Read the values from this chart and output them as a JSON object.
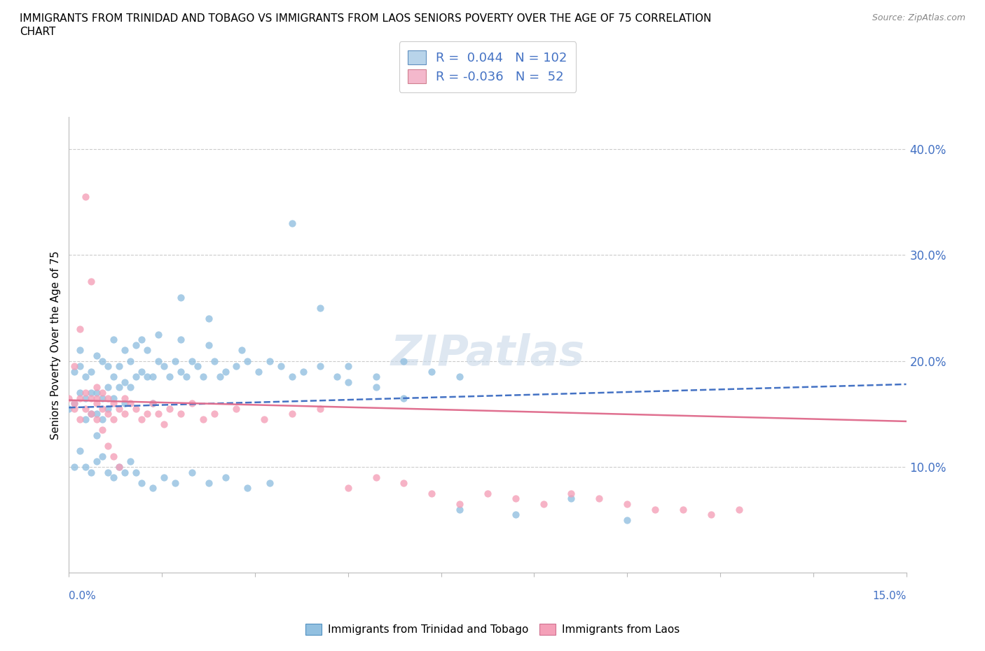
{
  "title": "IMMIGRANTS FROM TRINIDAD AND TOBAGO VS IMMIGRANTS FROM LAOS SENIORS POVERTY OVER THE AGE OF 75 CORRELATION\nCHART",
  "source": "Source: ZipAtlas.com",
  "ylabel": "Seniors Poverty Over the Age of 75",
  "ytick_vals": [
    0.1,
    0.2,
    0.3,
    0.4
  ],
  "ytick_labels": [
    "10.0%",
    "20.0%",
    "30.0%",
    "40.0%"
  ],
  "xmin": 0.0,
  "xmax": 0.15,
  "ymin": 0.0,
  "ymax": 0.43,
  "trinidad_color": "#92c0e0",
  "laos_color": "#f4a0b8",
  "trinidad_line_color": "#4472c4",
  "laos_line_color": "#e07090",
  "watermark": "ZIPatlas",
  "legend_label1": "R =  0.044   N = 102",
  "legend_label2": "R = -0.036   N =  52",
  "legend_patch_color1": "#b8d4ea",
  "legend_patch_color2": "#f4b8cc",
  "bottom_label1": "Immigrants from Trinidad and Tobago",
  "bottom_label2": "Immigrants from Laos",
  "trinidad_x": [
    0.0,
    0.001,
    0.001,
    0.002,
    0.002,
    0.002,
    0.003,
    0.003,
    0.003,
    0.004,
    0.004,
    0.004,
    0.005,
    0.005,
    0.005,
    0.005,
    0.006,
    0.006,
    0.006,
    0.007,
    0.007,
    0.007,
    0.008,
    0.008,
    0.008,
    0.009,
    0.009,
    0.01,
    0.01,
    0.01,
    0.011,
    0.011,
    0.012,
    0.012,
    0.013,
    0.013,
    0.014,
    0.014,
    0.015,
    0.015,
    0.016,
    0.016,
    0.017,
    0.018,
    0.019,
    0.02,
    0.02,
    0.021,
    0.022,
    0.023,
    0.024,
    0.025,
    0.026,
    0.027,
    0.028,
    0.03,
    0.031,
    0.032,
    0.034,
    0.036,
    0.038,
    0.04,
    0.042,
    0.045,
    0.048,
    0.05,
    0.055,
    0.06,
    0.065,
    0.07,
    0.001,
    0.002,
    0.003,
    0.004,
    0.005,
    0.006,
    0.007,
    0.008,
    0.009,
    0.01,
    0.011,
    0.012,
    0.013,
    0.015,
    0.017,
    0.019,
    0.022,
    0.025,
    0.028,
    0.032,
    0.036,
    0.04,
    0.045,
    0.05,
    0.055,
    0.06,
    0.07,
    0.08,
    0.09,
    0.1,
    0.02,
    0.025
  ],
  "trinidad_y": [
    0.155,
    0.19,
    0.16,
    0.17,
    0.195,
    0.21,
    0.145,
    0.165,
    0.185,
    0.15,
    0.17,
    0.19,
    0.13,
    0.15,
    0.17,
    0.205,
    0.145,
    0.165,
    0.2,
    0.155,
    0.175,
    0.195,
    0.165,
    0.185,
    0.22,
    0.175,
    0.195,
    0.16,
    0.18,
    0.21,
    0.175,
    0.2,
    0.185,
    0.215,
    0.19,
    0.22,
    0.185,
    0.21,
    0.16,
    0.185,
    0.2,
    0.225,
    0.195,
    0.185,
    0.2,
    0.19,
    0.22,
    0.185,
    0.2,
    0.195,
    0.185,
    0.215,
    0.2,
    0.185,
    0.19,
    0.195,
    0.21,
    0.2,
    0.19,
    0.2,
    0.195,
    0.185,
    0.19,
    0.195,
    0.185,
    0.18,
    0.185,
    0.2,
    0.19,
    0.185,
    0.1,
    0.115,
    0.1,
    0.095,
    0.105,
    0.11,
    0.095,
    0.09,
    0.1,
    0.095,
    0.105,
    0.095,
    0.085,
    0.08,
    0.09,
    0.085,
    0.095,
    0.085,
    0.09,
    0.08,
    0.085,
    0.33,
    0.25,
    0.195,
    0.175,
    0.165,
    0.06,
    0.055,
    0.07,
    0.05,
    0.26,
    0.24
  ],
  "laos_x": [
    0.0,
    0.001,
    0.001,
    0.002,
    0.002,
    0.003,
    0.003,
    0.004,
    0.004,
    0.005,
    0.005,
    0.005,
    0.006,
    0.006,
    0.007,
    0.007,
    0.008,
    0.008,
    0.009,
    0.01,
    0.01,
    0.011,
    0.012,
    0.013,
    0.014,
    0.015,
    0.016,
    0.017,
    0.018,
    0.02,
    0.022,
    0.024,
    0.026,
    0.03,
    0.035,
    0.04,
    0.045,
    0.05,
    0.055,
    0.06,
    0.065,
    0.07,
    0.075,
    0.08,
    0.085,
    0.09,
    0.095,
    0.1,
    0.105,
    0.11,
    0.115,
    0.12
  ],
  "laos_y": [
    0.165,
    0.16,
    0.155,
    0.145,
    0.165,
    0.155,
    0.17,
    0.15,
    0.165,
    0.145,
    0.16,
    0.175,
    0.155,
    0.17,
    0.15,
    0.165,
    0.145,
    0.16,
    0.155,
    0.15,
    0.165,
    0.16,
    0.155,
    0.145,
    0.15,
    0.16,
    0.15,
    0.14,
    0.155,
    0.15,
    0.16,
    0.145,
    0.15,
    0.155,
    0.145,
    0.15,
    0.155,
    0.08,
    0.09,
    0.085,
    0.075,
    0.065,
    0.075,
    0.07,
    0.065,
    0.075,
    0.07,
    0.065,
    0.06,
    0.06,
    0.055,
    0.06
  ],
  "laos_extra_x": [
    0.001,
    0.002,
    0.003,
    0.004,
    0.005,
    0.006,
    0.007,
    0.008,
    0.009
  ],
  "laos_extra_y": [
    0.195,
    0.23,
    0.355,
    0.275,
    0.165,
    0.135,
    0.12,
    0.11,
    0.1
  ]
}
